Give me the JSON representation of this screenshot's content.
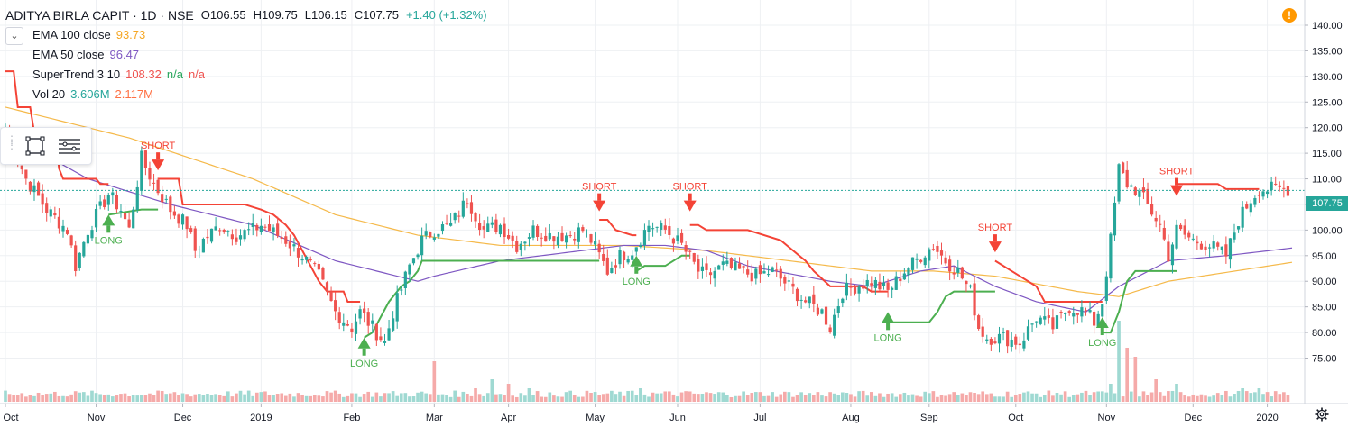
{
  "legend": {
    "symbol": "ADITYA BIRLA CAPIT · 1D · NSE",
    "open": "O106.55",
    "high": "H109.75",
    "low": "L106.15",
    "close": "C107.75",
    "change": "+1.40 (+1.32%)",
    "indicators": [
      {
        "name": "EMA 100 close",
        "values": [
          "93.73"
        ],
        "colors": [
          "#f5a623"
        ]
      },
      {
        "name": "EMA 50 close",
        "values": [
          "96.47"
        ],
        "colors": [
          "#7e57c2"
        ]
      },
      {
        "name": "SuperTrend 3 10",
        "values": [
          "108.32",
          "n/a",
          "n/a"
        ],
        "colors": [
          "#ef5350",
          "#26a65b",
          "#ef5350"
        ]
      },
      {
        "name": "Vol 20",
        "values": [
          "3.606M",
          "2.117M"
        ],
        "colors": [
          "#26a69a",
          "#ff7043"
        ]
      }
    ]
  },
  "last_price_badge": "107.75",
  "colors": {
    "up": "#26a69a",
    "down": "#ef5350",
    "ema100": "#f5b94a",
    "ema50": "#7e57c2",
    "supertrend_up": "#4caf50",
    "supertrend_down": "#f44336",
    "grid": "#eef0f3",
    "vol_up": "#9fd9d2",
    "vol_down": "#f5aaa9"
  },
  "icons": [
    "chevron-down-icon",
    "grip-icon",
    "rectangle-tool-icon",
    "list-lines-icon",
    "warning-icon",
    "gear-icon"
  ],
  "chart_data": {
    "type": "candlestick",
    "ylim": [
      71.5,
      142.5
    ],
    "y_ticks": [
      "140.00",
      "135.00",
      "130.00",
      "125.00",
      "120.00",
      "115.00",
      "110.00",
      "105.00",
      "100.00",
      "95.00",
      "90.00",
      "85.00",
      "80.00",
      "75.00"
    ],
    "y_tick_values": [
      140,
      135,
      130,
      125,
      120,
      115,
      110,
      105,
      100,
      95,
      90,
      85,
      80,
      75
    ],
    "x_ticks": [
      "Oct",
      "Nov",
      "Dec",
      "2019",
      "Feb",
      "Mar",
      "Apr",
      "May",
      "Jun",
      "Jul",
      "Aug",
      "Sep",
      "Oct",
      "Nov",
      "Dec",
      "2020"
    ],
    "x_tick_bars": [
      0,
      22,
      43,
      62,
      84,
      104,
      122,
      143,
      163,
      183,
      205,
      224,
      245,
      267,
      288,
      306
    ],
    "bar_count": 312,
    "key_closes": [
      [
        0,
        120
      ],
      [
        5,
        110
      ],
      [
        10,
        104
      ],
      [
        15,
        100
      ],
      [
        17,
        93
      ],
      [
        20,
        100
      ],
      [
        25,
        107
      ],
      [
        28,
        104
      ],
      [
        30,
        100
      ],
      [
        33,
        114
      ],
      [
        36,
        109
      ],
      [
        40,
        104
      ],
      [
        44,
        101
      ],
      [
        46,
        96
      ],
      [
        48,
        98
      ],
      [
        52,
        101
      ],
      [
        56,
        99
      ],
      [
        60,
        100
      ],
      [
        62,
        101
      ],
      [
        64,
        100
      ],
      [
        68,
        98
      ],
      [
        72,
        95
      ],
      [
        76,
        91
      ],
      [
        80,
        84
      ],
      [
        84,
        81
      ],
      [
        86,
        84
      ],
      [
        90,
        80
      ],
      [
        92,
        78
      ],
      [
        94,
        84
      ],
      [
        98,
        93
      ],
      [
        101,
        98
      ],
      [
        104,
        100
      ],
      [
        108,
        101
      ],
      [
        112,
        106
      ],
      [
        116,
        100
      ],
      [
        120,
        101
      ],
      [
        124,
        97
      ],
      [
        128,
        100
      ],
      [
        132,
        99
      ],
      [
        136,
        99
      ],
      [
        140,
        100
      ],
      [
        142,
        98
      ],
      [
        146,
        92
      ],
      [
        149,
        95
      ],
      [
        152,
        96
      ],
      [
        156,
        101
      ],
      [
        160,
        100
      ],
      [
        164,
        97
      ],
      [
        168,
        92
      ],
      [
        170,
        91
      ],
      [
        174,
        93
      ],
      [
        178,
        92
      ],
      [
        182,
        91
      ],
      [
        186,
        92
      ],
      [
        190,
        89
      ],
      [
        194,
        86
      ],
      [
        198,
        84
      ],
      [
        200,
        81
      ],
      [
        203,
        88
      ],
      [
        206,
        89
      ],
      [
        210,
        90
      ],
      [
        214,
        88
      ],
      [
        218,
        92
      ],
      [
        222,
        95
      ],
      [
        225,
        97
      ],
      [
        228,
        94
      ],
      [
        231,
        92
      ],
      [
        234,
        88
      ],
      [
        236,
        81
      ],
      [
        238,
        79
      ],
      [
        242,
        79
      ],
      [
        246,
        78
      ],
      [
        250,
        83
      ],
      [
        254,
        81
      ],
      [
        258,
        85
      ],
      [
        262,
        84
      ],
      [
        264,
        82
      ],
      [
        266,
        86
      ],
      [
        268,
        98
      ],
      [
        270,
        112
      ],
      [
        272,
        109
      ],
      [
        274,
        108
      ],
      [
        276,
        106
      ],
      [
        280,
        101
      ],
      [
        282,
        95
      ],
      [
        284,
        100
      ],
      [
        288,
        98
      ],
      [
        292,
        97
      ],
      [
        296,
        95
      ],
      [
        299,
        102
      ],
      [
        302,
        106
      ],
      [
        304,
        108
      ]
    ],
    "ema50_points": [
      [
        0,
        119
      ],
      [
        20,
        110
      ],
      [
        40,
        105
      ],
      [
        60,
        101
      ],
      [
        80,
        94
      ],
      [
        100,
        90
      ],
      [
        104,
        91
      ],
      [
        120,
        94
      ],
      [
        140,
        96
      ],
      [
        150,
        97
      ],
      [
        160,
        97
      ],
      [
        170,
        96
      ],
      [
        180,
        93
      ],
      [
        200,
        90
      ],
      [
        210,
        89
      ],
      [
        222,
        92
      ],
      [
        230,
        93
      ],
      [
        240,
        89
      ],
      [
        250,
        86
      ],
      [
        262,
        84
      ],
      [
        270,
        89
      ],
      [
        282,
        94
      ],
      [
        296,
        95
      ],
      [
        312,
        96.5
      ]
    ],
    "ema100_points": [
      [
        0,
        124
      ],
      [
        30,
        118
      ],
      [
        60,
        110
      ],
      [
        80,
        103
      ],
      [
        100,
        99
      ],
      [
        120,
        97
      ],
      [
        150,
        97
      ],
      [
        170,
        96
      ],
      [
        190,
        94
      ],
      [
        210,
        92
      ],
      [
        225,
        92
      ],
      [
        240,
        91
      ],
      [
        260,
        88
      ],
      [
        270,
        87
      ],
      [
        282,
        90
      ],
      [
        312,
        93.7
      ]
    ],
    "supertrend_segments": [
      {
        "trend": "down",
        "points": [
          [
            0,
            131
          ],
          [
            2,
            131
          ],
          [
            3,
            124
          ],
          [
            6,
            124
          ],
          [
            7,
            119
          ],
          [
            12,
            119
          ],
          [
            13,
            112
          ],
          [
            14,
            110
          ],
          [
            22,
            110
          ],
          [
            23,
            109
          ],
          [
            25,
            109
          ]
        ]
      },
      {
        "trend": "up",
        "points": [
          [
            25,
            103
          ],
          [
            33,
            104
          ],
          [
            36,
            104
          ],
          [
            37,
            104
          ]
        ]
      },
      {
        "trend": "down",
        "points": [
          [
            37,
            110
          ],
          [
            42,
            110
          ],
          [
            43,
            105
          ],
          [
            58,
            105
          ],
          [
            62,
            104
          ],
          [
            65,
            103
          ],
          [
            68,
            101
          ],
          [
            70,
            99
          ],
          [
            72,
            96
          ],
          [
            74,
            93
          ],
          [
            76,
            90
          ],
          [
            78,
            88
          ],
          [
            82,
            88
          ],
          [
            83,
            86
          ],
          [
            86,
            86
          ]
        ]
      },
      {
        "trend": "up",
        "points": [
          [
            87,
            79
          ],
          [
            89,
            80
          ],
          [
            91,
            83
          ],
          [
            93,
            86
          ],
          [
            95,
            88
          ],
          [
            96,
            89
          ],
          [
            98,
            90
          ],
          [
            100,
            92
          ],
          [
            101,
            94
          ],
          [
            140,
            94
          ],
          [
            144,
            94
          ]
        ]
      },
      {
        "trend": "down",
        "points": [
          [
            144,
            102
          ],
          [
            146,
            102
          ],
          [
            148,
            100
          ],
          [
            152,
            99
          ],
          [
            153,
            99
          ]
        ]
      },
      {
        "trend": "up",
        "points": [
          [
            153,
            92
          ],
          [
            155,
            93
          ],
          [
            160,
            93
          ],
          [
            164,
            95
          ],
          [
            166,
            95
          ]
        ]
      },
      {
        "trend": "down",
        "points": [
          [
            166,
            101
          ],
          [
            168,
            101
          ],
          [
            170,
            100
          ],
          [
            180,
            100
          ],
          [
            188,
            98
          ],
          [
            194,
            94
          ],
          [
            196,
            92
          ],
          [
            200,
            89
          ],
          [
            208,
            89
          ],
          [
            210,
            88
          ],
          [
            214,
            88
          ]
        ]
      },
      {
        "trend": "up",
        "points": [
          [
            214,
            82
          ],
          [
            224,
            82
          ],
          [
            226,
            84
          ],
          [
            228,
            87
          ],
          [
            230,
            88
          ],
          [
            240,
            88
          ]
        ]
      },
      {
        "trend": "down",
        "points": [
          [
            240,
            94
          ],
          [
            246,
            91
          ],
          [
            250,
            89
          ],
          [
            252,
            86
          ],
          [
            262,
            86
          ],
          [
            266,
            86
          ]
        ]
      },
      {
        "trend": "up",
        "points": [
          [
            266,
            80
          ],
          [
            268,
            80
          ],
          [
            270,
            84
          ],
          [
            272,
            90
          ],
          [
            274,
            92
          ],
          [
            282,
            92
          ],
          [
            284,
            92
          ]
        ]
      },
      {
        "trend": "down",
        "points": [
          [
            284,
            109
          ],
          [
            294,
            109
          ],
          [
            296,
            108
          ],
          [
            304,
            108
          ]
        ]
      }
    ],
    "signals": [
      {
        "label": "LONG",
        "type": "long",
        "bar": 25,
        "y": 103
      },
      {
        "label": "SHORT",
        "type": "short",
        "bar": 37,
        "y": 112
      },
      {
        "label": "LONG",
        "type": "long",
        "bar": 87,
        "y": 79
      },
      {
        "label": "SHORT",
        "type": "short",
        "bar": 144,
        "y": 104
      },
      {
        "label": "LONG",
        "type": "long",
        "bar": 153,
        "y": 95
      },
      {
        "label": "SHORT",
        "type": "short",
        "bar": 166,
        "y": 104
      },
      {
        "label": "LONG",
        "type": "long",
        "bar": 214,
        "y": 84
      },
      {
        "label": "SHORT",
        "type": "short",
        "bar": 240,
        "y": 96
      },
      {
        "label": "LONG",
        "type": "long",
        "bar": 266,
        "y": 83
      },
      {
        "label": "SHORT",
        "type": "short",
        "bar": 284,
        "y": 107
      }
    ],
    "volume_spikes": [
      [
        104,
        9
      ],
      [
        114,
        3
      ],
      [
        118,
        5
      ],
      [
        122,
        4
      ],
      [
        127,
        3
      ],
      [
        142,
        2
      ],
      [
        154,
        3
      ],
      [
        204,
        2
      ],
      [
        235,
        2
      ],
      [
        255,
        2
      ],
      [
        268,
        4
      ],
      [
        270,
        18
      ],
      [
        272,
        12
      ],
      [
        274,
        10
      ],
      [
        279,
        5
      ],
      [
        284,
        4
      ],
      [
        300,
        3
      ],
      [
        304,
        3
      ]
    ]
  }
}
